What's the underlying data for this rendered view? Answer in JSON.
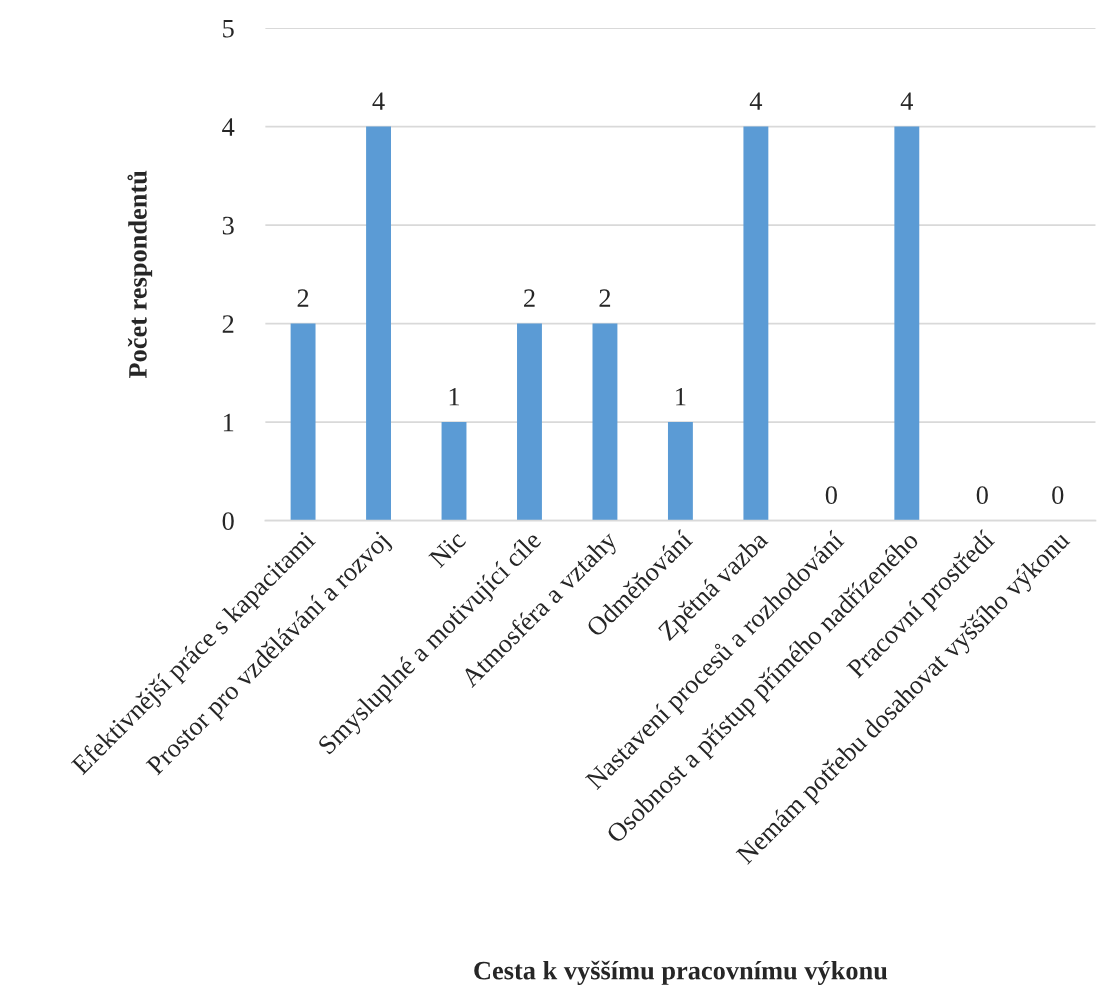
{
  "chart_data": {
    "type": "bar",
    "xlabel": "Cesta k vyššímu pracovnímu výkonu",
    "ylabel": "Počet respondentů",
    "categories": [
      "Efektivnější práce s kapacitami",
      "Prostor pro vzdělávání a rozvoj",
      "Nic",
      "Smysluplné a motivující cíle",
      "Atmosféra a vztahy",
      "Odměňování",
      "Zpětná vazba",
      "Nastavení procesů a rozhodování",
      "Osobnost a přístup přímého nadřízeného",
      "Pracovní prostředí",
      "Nemám potřebu dosahovat vyššího výkonu"
    ],
    "values": [
      2,
      4,
      1,
      2,
      2,
      1,
      4,
      0,
      4,
      0,
      0
    ],
    "color": "#5b9bd5",
    "ylim": [
      0,
      5
    ],
    "yticks": [
      0,
      1,
      2,
      3,
      4,
      5
    ],
    "grid": "y",
    "data_labels": true
  }
}
